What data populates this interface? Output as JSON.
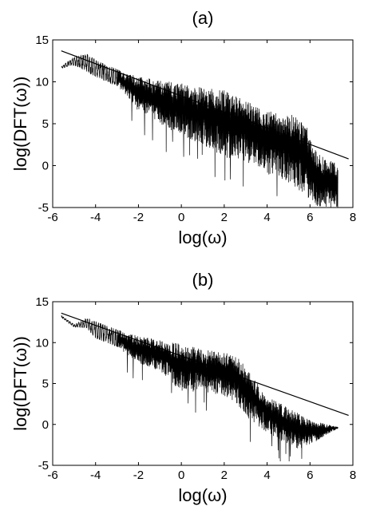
{
  "chart_data": [
    {
      "type": "line",
      "title": "(a)",
      "xlabel": "log(ω)",
      "ylabel": "log(DFT(ω))",
      "xlim": [
        -6,
        8
      ],
      "ylim": [
        -5,
        15
      ],
      "xticks": [
        "-6",
        "-4",
        "-2",
        "0",
        "2",
        "4",
        "6",
        "8"
      ],
      "yticks": [
        "-5",
        "0",
        "5",
        "10",
        "15"
      ],
      "grid": false,
      "legend": "none",
      "series": [
        {
          "kind": "spectrum",
          "envelope": [
            {
              "x": -5.6,
              "upper": 11.8,
              "lower": 11.6
            },
            {
              "x": -5.0,
              "upper": 13.0,
              "lower": 12.0
            },
            {
              "x": -4.4,
              "upper": 13.3,
              "lower": 11.2
            },
            {
              "x": -4.0,
              "upper": 12.6,
              "lower": 10.6
            },
            {
              "x": -3.0,
              "upper": 11.5,
              "lower": 9.5
            },
            {
              "x": -2.0,
              "upper": 10.6,
              "lower": 6.5
            },
            {
              "x": -1.0,
              "upper": 10.2,
              "lower": 5.0
            },
            {
              "x": 0.0,
              "upper": 9.8,
              "lower": 3.5
            },
            {
              "x": 1.0,
              "upper": 9.3,
              "lower": 2.5
            },
            {
              "x": 2.0,
              "upper": 9.0,
              "lower": 1.0
            },
            {
              "x": 3.0,
              "upper": 7.8,
              "lower": 0.5
            },
            {
              "x": 4.0,
              "upper": 6.5,
              "lower": -1.0
            },
            {
              "x": 5.0,
              "upper": 6.3,
              "lower": -2.0
            },
            {
              "x": 5.8,
              "upper": 5.0,
              "lower": -3.5
            },
            {
              "x": 6.2,
              "upper": 2.0,
              "lower": -5.0
            },
            {
              "x": 6.8,
              "upper": 0.6,
              "lower": -5.0
            },
            {
              "x": 7.3,
              "upper": 0.4,
              "lower": -5.0
            }
          ]
        },
        {
          "kind": "fit",
          "x": [
            -5.6,
            7.8
          ],
          "y": [
            13.7,
            0.8
          ]
        }
      ]
    },
    {
      "type": "line",
      "title": "(b)",
      "xlabel": "log(ω)",
      "ylabel": "log(DFT(ω))",
      "xlim": [
        -6,
        8
      ],
      "ylim": [
        -5,
        15
      ],
      "xticks": [
        "-6",
        "-4",
        "-2",
        "0",
        "2",
        "4",
        "6",
        "8"
      ],
      "yticks": [
        "-5",
        "0",
        "5",
        "10",
        "15"
      ],
      "grid": false,
      "legend": "none",
      "series": [
        {
          "kind": "spectrum",
          "envelope": [
            {
              "x": -5.6,
              "upper": 13.3,
              "lower": 13.1
            },
            {
              "x": -5.0,
              "upper": 12.2,
              "lower": 11.9
            },
            {
              "x": -4.4,
              "upper": 13.0,
              "lower": 11.8
            },
            {
              "x": -4.0,
              "upper": 12.6,
              "lower": 10.5
            },
            {
              "x": -3.0,
              "upper": 11.6,
              "lower": 9.5
            },
            {
              "x": -2.0,
              "upper": 10.8,
              "lower": 7.5
            },
            {
              "x": -1.0,
              "upper": 10.3,
              "lower": 6.5
            },
            {
              "x": 0.0,
              "upper": 9.8,
              "lower": 4.0
            },
            {
              "x": 1.0,
              "upper": 9.2,
              "lower": 4.0
            },
            {
              "x": 2.0,
              "upper": 8.8,
              "lower": 3.5
            },
            {
              "x": 2.6,
              "upper": 8.3,
              "lower": 2.5
            },
            {
              "x": 3.0,
              "upper": 7.0,
              "lower": 1.0
            },
            {
              "x": 4.0,
              "upper": 3.5,
              "lower": -1.0
            },
            {
              "x": 5.0,
              "upper": 2.0,
              "lower": -2.5
            },
            {
              "x": 5.5,
              "upper": 1.3,
              "lower": -3.0
            },
            {
              "x": 6.0,
              "upper": 0.5,
              "lower": -2.5
            },
            {
              "x": 7.3,
              "upper": -0.3,
              "lower": -0.5
            }
          ]
        },
        {
          "kind": "fit",
          "x": [
            -5.6,
            7.8
          ],
          "y": [
            13.6,
            1.1
          ]
        }
      ]
    }
  ]
}
